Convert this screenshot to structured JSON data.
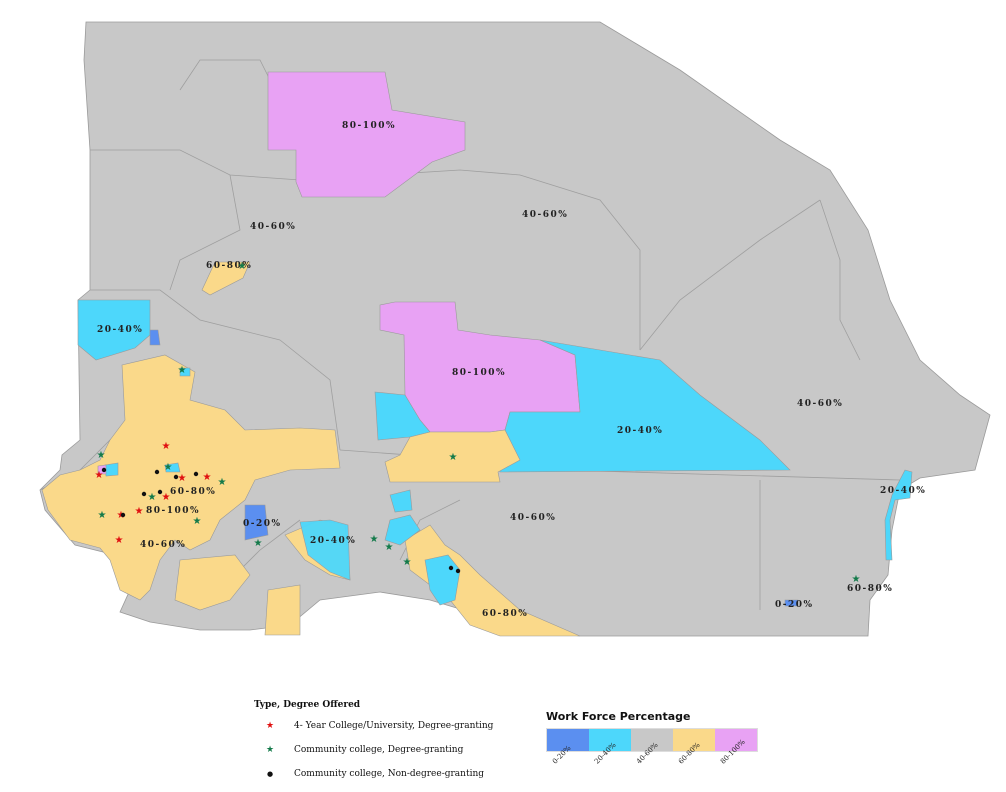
{
  "colors": {
    "c0_20": "#5b8ff0",
    "c20_40": "#4dd7fb",
    "c40_60": "#c8c8c8",
    "c60_80": "#fad98a",
    "c80_100": "#e8a2f4",
    "star_red": "#e01010",
    "star_green": "#147a4a",
    "dot_black": "#111111"
  },
  "map": {
    "labels": [
      {
        "id": "n-80-100",
        "text": "80-100%"
      },
      {
        "id": "c-40-60",
        "text": "40-60%"
      },
      {
        "id": "nw-40-60",
        "text": "40-60%"
      },
      {
        "id": "nw-60-80",
        "text": "60-80%"
      },
      {
        "id": "w-20-40",
        "text": "20-40%"
      },
      {
        "id": "mid-80-100",
        "text": "80-100%"
      },
      {
        "id": "e-40-60",
        "text": "40-60%"
      },
      {
        "id": "mid-20-40",
        "text": "20-40%"
      },
      {
        "id": "far-e-20-40",
        "text": "20-40%"
      },
      {
        "id": "sw-60-80",
        "text": "60-80%"
      },
      {
        "id": "sw-80-100",
        "text": "80-100%"
      },
      {
        "id": "sw-40-60",
        "text": "40-60%"
      },
      {
        "id": "s-0-20",
        "text": "0-20%"
      },
      {
        "id": "s-20-40",
        "text": "20-40%"
      },
      {
        "id": "se-40-60",
        "text": "40-60%"
      },
      {
        "id": "s-60-80",
        "text": "60-80%"
      },
      {
        "id": "far-se-60-80",
        "text": "60-80%"
      },
      {
        "id": "far-se-0-20",
        "text": "0-20%"
      }
    ]
  },
  "legend": {
    "title": "Type, Degree Offered",
    "items": [
      {
        "symbol": "★",
        "label": "4- Year College/University, Degree-granting"
      },
      {
        "symbol": "★",
        "label": "Community college, Degree-granting"
      },
      {
        "symbol": "●",
        "label": "Community college, Non-degree-granting"
      }
    ]
  },
  "workforce": {
    "title": "Work Force Percentage",
    "bins": [
      "0-20%",
      "20-40%",
      "40-60%",
      "60-80%",
      "80-100%"
    ]
  }
}
